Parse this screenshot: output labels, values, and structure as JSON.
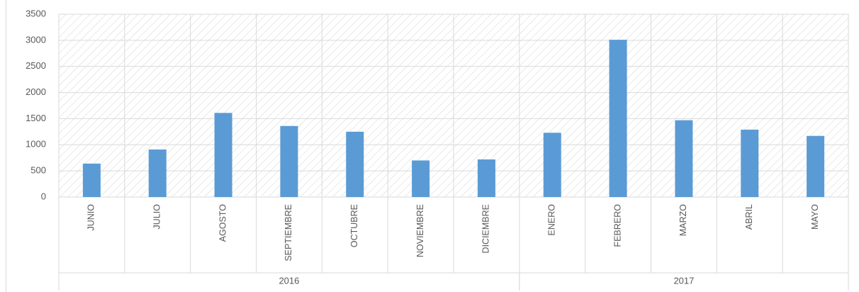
{
  "chart_data": {
    "type": "bar",
    "categories": [
      "JUNIO",
      "JULIO",
      "AGOSTO",
      "SEPTIEMBRE",
      "OCTUBRE",
      "NOVIEMBRE",
      "DICIEMBRE",
      "ENERO",
      "FEBRERO",
      "MARZO",
      "ABRIL",
      "MAYO"
    ],
    "x_groups": [
      {
        "label": "2016",
        "count": 7
      },
      {
        "label": "2017",
        "count": 5
      }
    ],
    "values": [
      640,
      910,
      1610,
      1360,
      1250,
      700,
      720,
      1230,
      3010,
      1470,
      1290,
      1170
    ],
    "color": "#5b9bd5",
    "ylim": [
      0,
      3500
    ],
    "yticks": [
      0,
      500,
      1000,
      1500,
      2000,
      2500,
      3000,
      3500
    ],
    "grid": true
  }
}
